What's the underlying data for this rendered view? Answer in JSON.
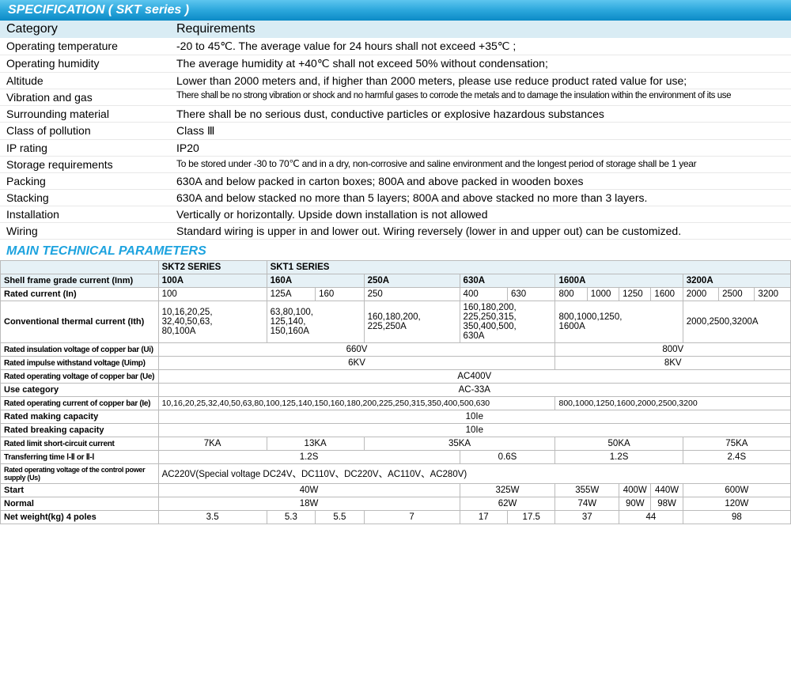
{
  "specHeader": "SPECIFICATION ( SKT series )",
  "specColumns": {
    "cat": "Category",
    "req": "Requirements"
  },
  "specRows": [
    {
      "cat": "Operating temperature",
      "req": "-20 to 45℃. The average value for 24 hours shall not exceed +35℃ ;"
    },
    {
      "cat": "Operating humidity",
      "req": "The average humidity at +40℃ shall not exceed 50% without condensation;"
    },
    {
      "cat": "Altitude",
      "req": " Lower than 2000 meters and, if higher than 2000 meters, please use reduce product rated value for use;"
    },
    {
      "cat": "Vibration and gas",
      "req": "There shall be no strong vibration or shock and no harmful gases to corrode the metals and to damage the insulation within the environment of its use",
      "cls": "smaller"
    },
    {
      "cat": "Surrounding material",
      "req": "There shall be no serious dust, conductive particles or explosive hazardous substances"
    },
    {
      "cat": "Class of pollution",
      "req": "Class Ⅲ"
    },
    {
      "cat": "IP rating",
      "req": "IP20"
    },
    {
      "cat": "Storage requirements",
      "req": "To be stored under -30 to 70℃ and in a dry, non-corrosive and saline environment and the longest period of storage shall be 1 year",
      "cls": "small"
    },
    {
      "cat": "Packing",
      "req": "630A and below packed in carton boxes; 800A and above packed in wooden boxes"
    },
    {
      "cat": "Stacking",
      "req": "630A and below stacked no more than 5 layers; 800A and above stacked no more than 3 layers."
    },
    {
      "cat": "Installation",
      "req": "Vertically or horizontally. Upside down installation is not allowed"
    },
    {
      "cat": "Wiring",
      "req": "Standard wiring is upper in and lower out. Wiring reversely (lower in and upper out) can be customized."
    }
  ],
  "paramsHeader": "MAIN TECHNICAL PARAMETERS",
  "series": {
    "skt2": "SKT2  SERIES",
    "skt1": "SKT1  SERIES"
  },
  "labels": {
    "shell": "Shell frame grade current (Inm)",
    "rated": "Rated current (In)",
    "thermal": "Conventional thermal current (Ith)",
    "insul": "Rated insulation voltage of copper bar (Ui)",
    "impulse": "Rated impulse withstand voltage (Uimp)",
    "opvolt": "Rated operating voltage of copper bar (Ue)",
    "usecat": "Use category",
    "opcur": "Rated operating current of copper bar (Ie)",
    "making": "Rated making capacity",
    "breaking": "Rated breaking capacity",
    "shortc": "Rated limit short-circuit current",
    "transfer": "Transferring time Ⅰ-Ⅱ or Ⅱ-Ⅰ",
    "ctrlvolt": "Rated operating voltage of the control power supply (Us)",
    "start": "Start",
    "normal": "Normal",
    "weight": "Net weight(kg)  4 poles"
  },
  "shell": {
    "c1": "100A",
    "c2": "160A",
    "c3": "250A",
    "c4": "630A",
    "c5": "1600A",
    "c6": "3200A"
  },
  "rated": {
    "v1": "100",
    "v2a": "125A",
    "v2b": "160",
    "v3": "250",
    "v4a": "400",
    "v4b": "630",
    "v5a": "800",
    "v5b": "1000",
    "v5c": "1250",
    "v5d": "1600",
    "v6a": "2000",
    "v6b": "2500",
    "v6c": "3200"
  },
  "thermal": {
    "c1": "10,16,20,25,\n32,40,50,63,\n80,100A",
    "c2": "63,80,100,\n125,140,\n150,160A",
    "c3": "160,180,200,\n225,250A",
    "c4": "160,180,200,\n225,250,315,\n350,400,500,\n630A",
    "c5": "800,1000,1250,\n1600A",
    "c6": "2000,2500,3200A"
  },
  "insul": {
    "a": "660V",
    "b": "800V"
  },
  "impulse": {
    "a": "6KV",
    "b": "8KV"
  },
  "opvolt": "AC400V",
  "usecat": "AC-33A",
  "opcur": {
    "a": "10,16,20,25,32,40,50,63,80,100,125,140,150,160,180,200,225,250,315,350,400,500,630",
    "b": "800,1000,1250,1600,2000,2500,3200"
  },
  "making": "10Ie",
  "breaking": "10Ie",
  "shortc": {
    "c1": "7KA",
    "c2": "13KA",
    "c34": "35KA",
    "c5": "50KA",
    "c6": "75KA"
  },
  "transfer": {
    "a": "1.2S",
    "b": "0.6S",
    "c": "1.2S",
    "d": "2.4S"
  },
  "ctrlvolt": "AC220V(Special voltage DC24V、DC110V、DC220V、AC110V、AC280V)",
  "start": {
    "a": "40W",
    "b": "325W",
    "c": "355W",
    "d": "400W",
    "e": "440W",
    "f": "600W"
  },
  "normal": {
    "a": "18W",
    "b": "62W",
    "c": "74W",
    "d": "90W",
    "e": "98W",
    "f": "120W"
  },
  "weight": {
    "c1": "3.5",
    "c2a": "5.3",
    "c2b": "5.5",
    "c3": "7",
    "c4a": "17",
    "c4b": "17.5",
    "c5a": "37",
    "c5b": "44",
    "c6": "98"
  }
}
